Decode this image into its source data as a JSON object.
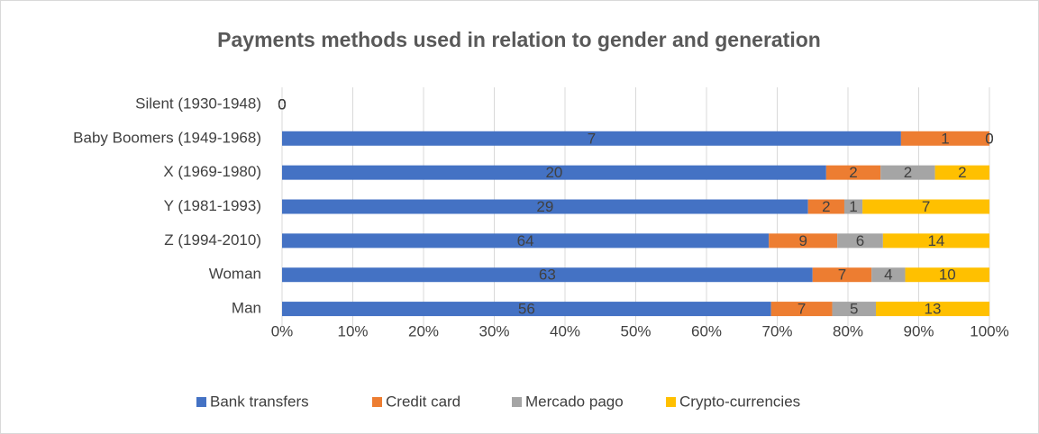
{
  "chart_data": {
    "type": "stacked_bar_100_horizontal",
    "title": "Payments methods used in relation to gender and generation",
    "categories": [
      "Silent (1930-1948)",
      "Baby Boomers (1949-1968)",
      "X (1969-1980)",
      "Y (1981-1993)",
      "Z (1994-2010)",
      "Woman",
      "Man"
    ],
    "series": [
      {
        "name": "Bank transfers",
        "color": "#4472c4",
        "values": [
          0,
          7,
          20,
          29,
          64,
          63,
          56
        ]
      },
      {
        "name": "Credit card",
        "color": "#ed7d31",
        "values": [
          0,
          1,
          2,
          2,
          9,
          7,
          7
        ]
      },
      {
        "name": "Mercado pago",
        "color": "#a5a5a5",
        "values": [
          0,
          0,
          2,
          1,
          6,
          4,
          5
        ]
      },
      {
        "name": "Crypto-currencies",
        "color": "#ffc000",
        "values": [
          0,
          0,
          2,
          7,
          14,
          10,
          13
        ]
      }
    ],
    "xlim": [
      0,
      100
    ],
    "xticks": [
      {
        "value": 0,
        "label": "0%"
      },
      {
        "value": 10,
        "label": "10%"
      },
      {
        "value": 20,
        "label": "20%"
      },
      {
        "value": 30,
        "label": "30%"
      },
      {
        "value": 40,
        "label": "40%"
      },
      {
        "value": 50,
        "label": "50%"
      },
      {
        "value": 60,
        "label": "60%"
      },
      {
        "value": 70,
        "label": "70%"
      },
      {
        "value": 80,
        "label": "80%"
      },
      {
        "value": 90,
        "label": "90%"
      },
      {
        "value": 100,
        "label": "100%"
      }
    ],
    "grid": true,
    "legend": "bottom"
  }
}
